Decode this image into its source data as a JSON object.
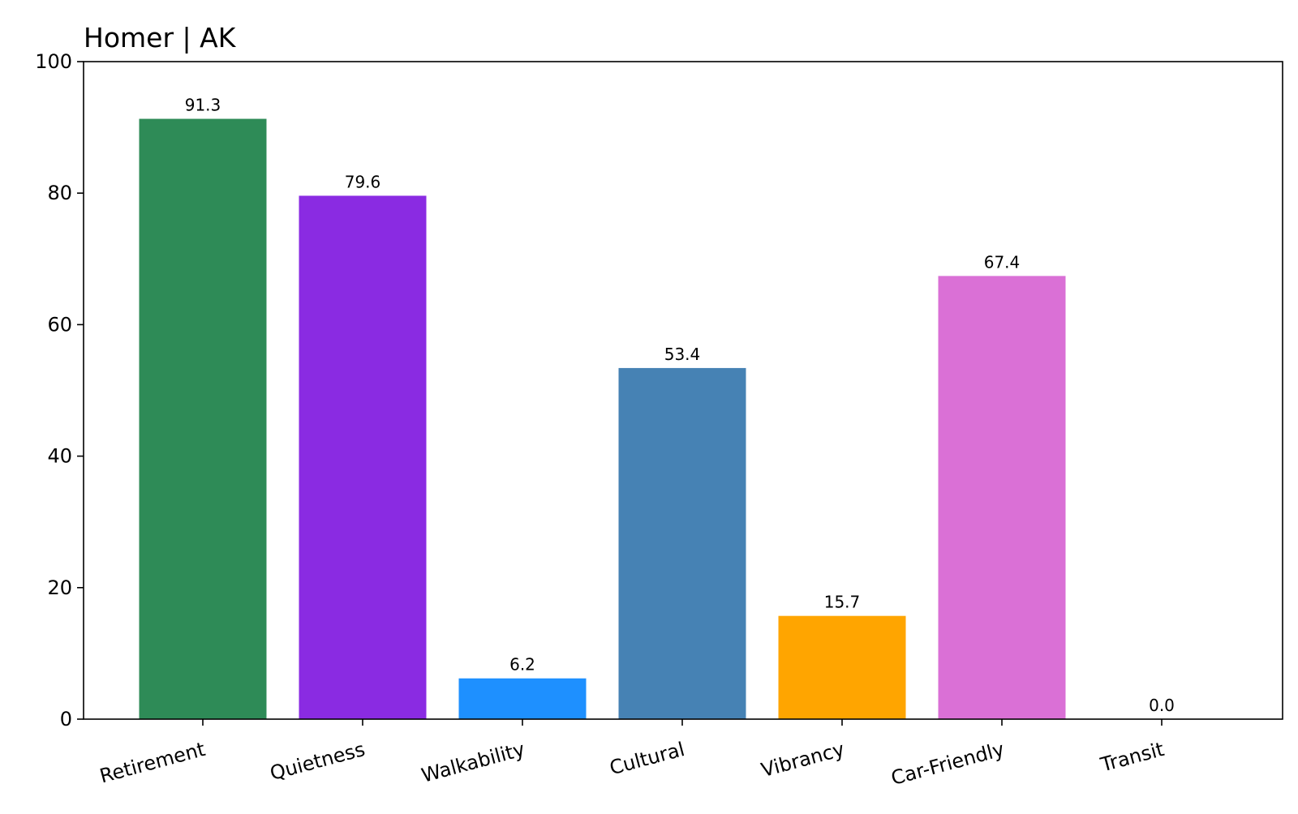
{
  "chart_data": {
    "type": "bar",
    "title": "Homer | AK",
    "xlabel": "",
    "ylabel": "",
    "ylim": [
      0,
      100
    ],
    "yticks": [
      0,
      20,
      40,
      60,
      80,
      100
    ],
    "grid": false,
    "categories": [
      "Retirement",
      "Quietness",
      "Walkability",
      "Cultural",
      "Vibrancy",
      "Car-Friendly",
      "Transit"
    ],
    "values": [
      91.3,
      79.6,
      6.2,
      53.4,
      15.7,
      67.4,
      0.0
    ],
    "value_labels": [
      "91.3",
      "79.6",
      "6.2",
      "53.4",
      "15.7",
      "67.4",
      "0.0"
    ],
    "colors": [
      "#2e8b57",
      "#8a2be2",
      "#1e90ff",
      "#4682b4",
      "#ffa500",
      "#da70d6",
      "#808080"
    ]
  }
}
